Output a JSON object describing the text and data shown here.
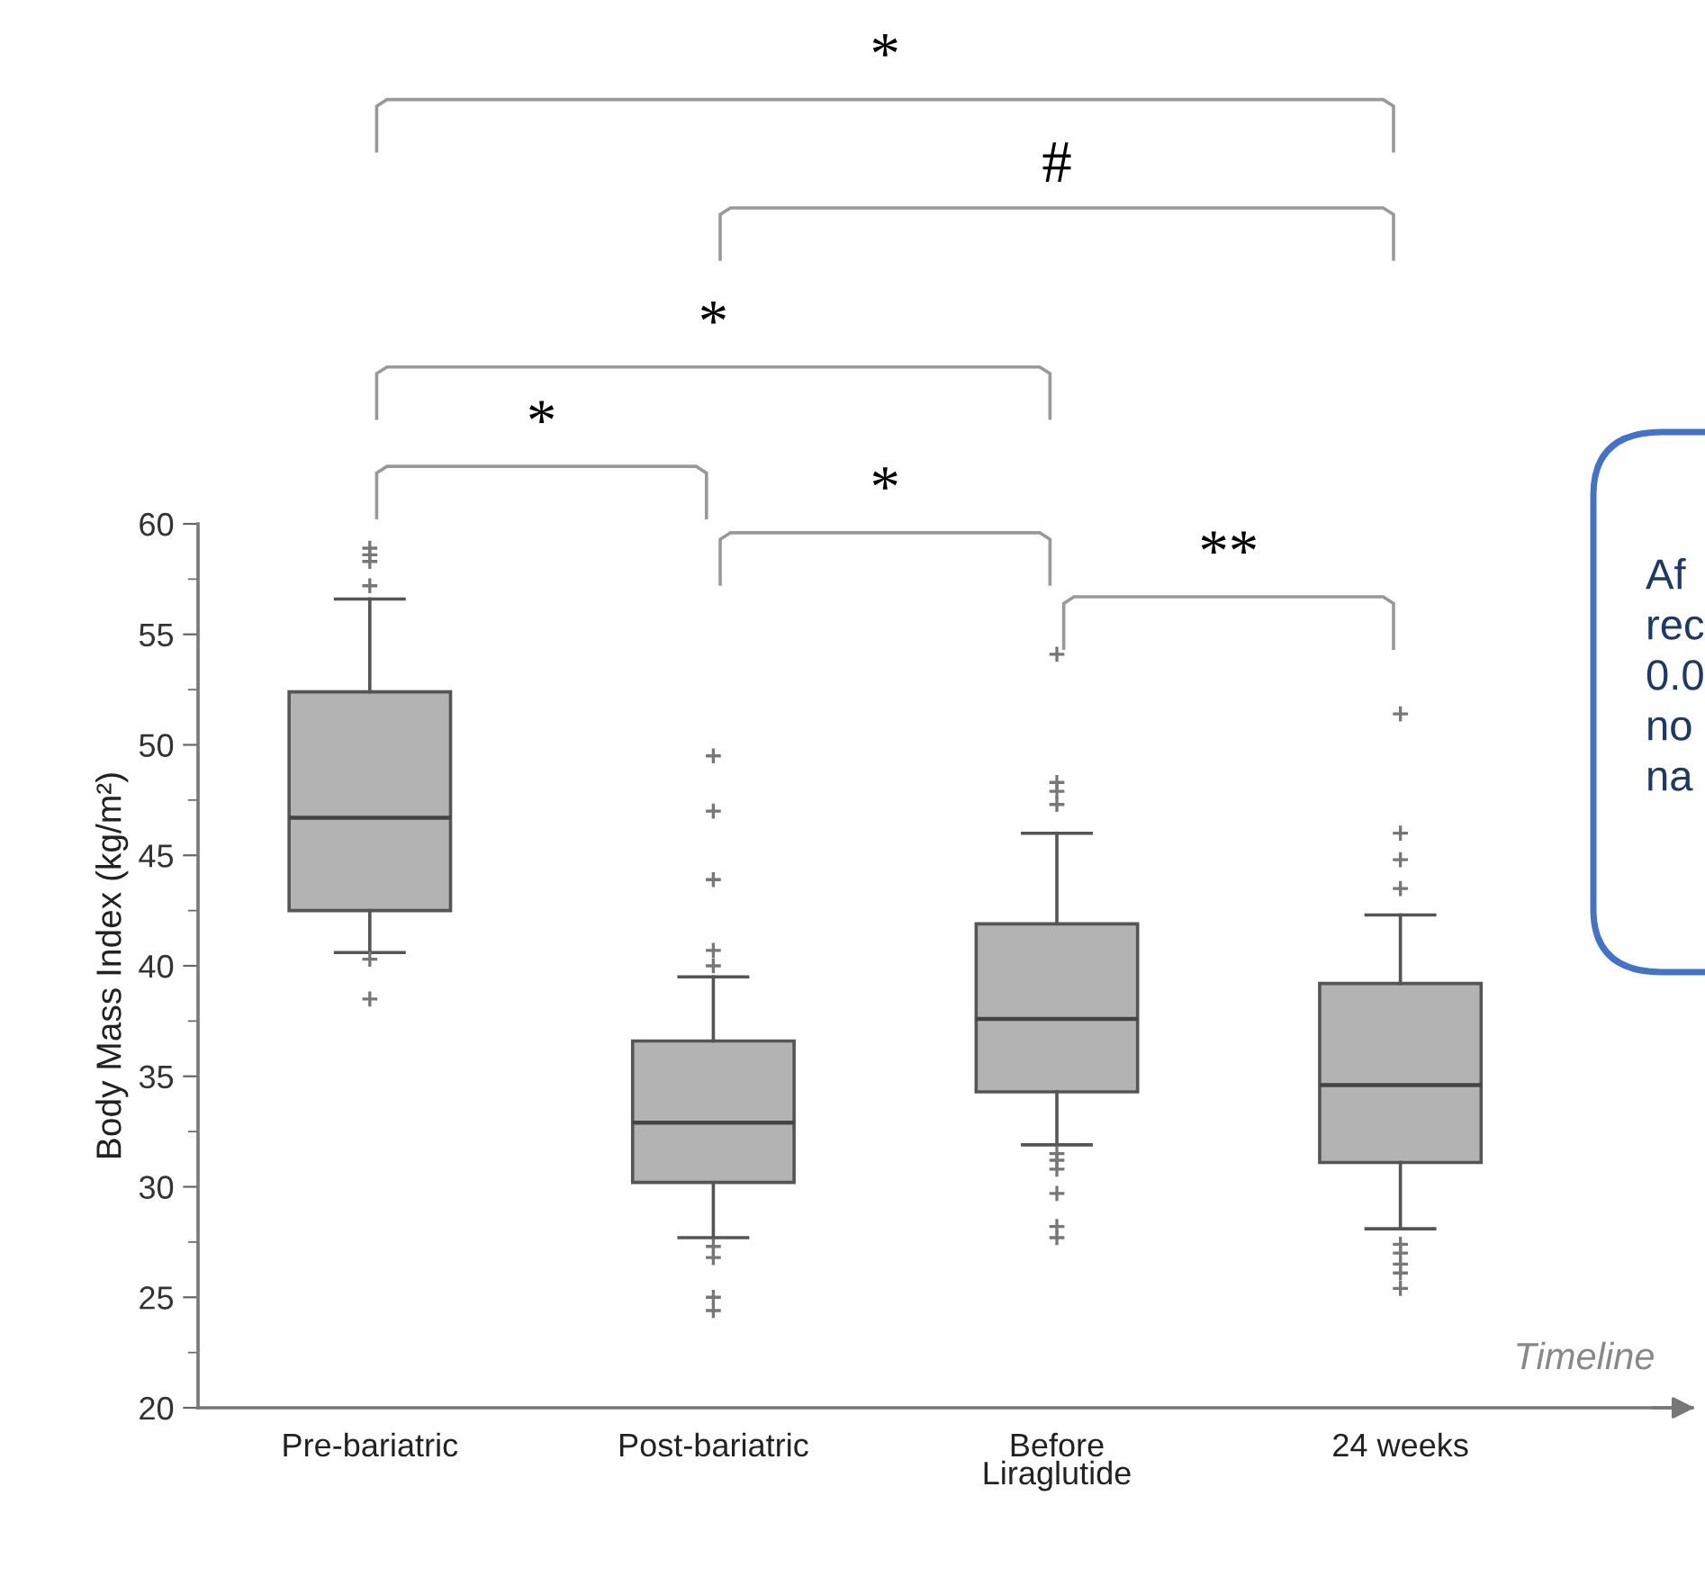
{
  "chart_data": {
    "type": "box",
    "ylabel": "Body Mass Index (kg/m²)",
    "xlabel": "Timeline",
    "categories": [
      "Pre-bariatric",
      "Post-bariatric",
      "Before\nLiraglutide",
      "24 weeks"
    ],
    "color": "#b3b3b3",
    "boxes": [
      {
        "low": 40.6,
        "q1": 42.5,
        "median": 46.7,
        "q3": 52.4,
        "high": 56.6,
        "outliers": [
          58.9,
          58.6,
          58.3,
          57.2,
          40.3,
          38.5
        ]
      },
      {
        "low": 27.7,
        "q1": 30.2,
        "median": 32.9,
        "q3": 36.6,
        "high": 39.5,
        "outliers": [
          49.5,
          47.0,
          43.9,
          40.7,
          40.0,
          27.3,
          26.8,
          25.0,
          24.4
        ]
      },
      {
        "low": 31.9,
        "q1": 34.3,
        "median": 37.6,
        "q3": 41.9,
        "high": 46.0,
        "outliers": [
          54.1,
          48.3,
          47.9,
          47.3,
          31.5,
          31.2,
          30.8,
          29.7,
          28.2,
          27.7
        ]
      },
      {
        "low": 28.1,
        "q1": 31.1,
        "median": 34.6,
        "q3": 39.2,
        "high": 42.3,
        "outliers": [
          51.4,
          46.0,
          44.8,
          43.5,
          27.4,
          27.0,
          26.5,
          26.1,
          25.4
        ]
      }
    ],
    "ylim": [
      20,
      60
    ],
    "yticks": [
      20,
      25,
      30,
      35,
      40,
      45,
      50,
      55,
      60
    ],
    "grid": false,
    "annotations": [
      "*",
      "#",
      "*",
      "*",
      "*",
      "**",
      "Af\nrec\n0.0\nno\nna"
    ]
  }
}
